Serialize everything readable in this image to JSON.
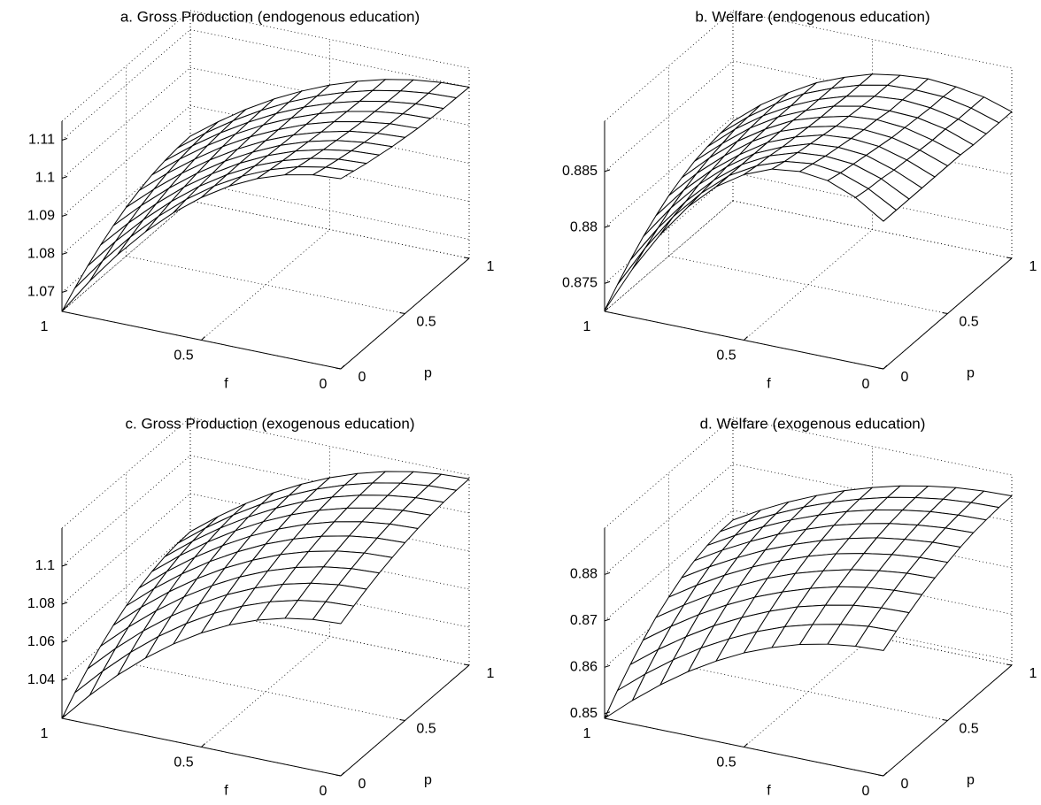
{
  "chart_data": [
    {
      "type": "surface",
      "title": "a. Gross Production (endogenous education)",
      "x_label": "f",
      "y_label": "p",
      "edge_color": "#000000",
      "face_color": "#ffffff",
      "grid": true,
      "xlim": [
        0,
        1
      ],
      "xticks": [
        0,
        0.5,
        1
      ],
      "ylim": [
        0,
        1
      ],
      "yticks": [
        0,
        0.5,
        1
      ],
      "zlim": [
        1.065,
        1.115
      ],
      "zticks": [
        1.07,
        1.08,
        1.09,
        1.1,
        1.11
      ],
      "x": [
        0,
        0.1,
        0.2,
        0.3,
        0.4,
        0.5,
        0.6,
        0.7,
        0.8,
        0.9,
        1
      ],
      "y": [
        0,
        0.1,
        0.2,
        0.3,
        0.4,
        0.5,
        0.6,
        0.7,
        0.8,
        0.9,
        1
      ],
      "z": [
        [
          1.115,
          1.1141,
          1.1132,
          1.1125,
          1.1118,
          1.1113,
          1.1108,
          1.1105,
          1.1102,
          1.1101,
          1.11
        ],
        [
          1.1145,
          1.1136,
          1.1128,
          1.1121,
          1.1114,
          1.1109,
          1.1105,
          1.1102,
          1.1099,
          1.1098,
          1.1097
        ],
        [
          1.113,
          1.1122,
          1.1115,
          1.1109,
          1.1104,
          1.1099,
          1.1095,
          1.1093,
          1.109,
          1.1089,
          1.1089
        ],
        [
          1.1105,
          1.1099,
          1.1094,
          1.109,
          1.1086,
          1.1082,
          1.108,
          1.1078,
          1.1076,
          1.1075,
          1.1075
        ],
        [
          1.107,
          1.1067,
          1.1065,
          1.1063,
          1.1061,
          1.1059,
          1.1058,
          1.1057,
          1.1056,
          1.1055,
          1.1055
        ],
        [
          1.1025,
          1.1026,
          1.1027,
          1.1028,
          1.1028,
          1.1029,
          1.1029,
          1.103,
          1.103,
          1.103,
          1.103
        ],
        [
          1.097,
          1.0976,
          1.0981,
          1.0985,
          1.0989,
          1.0992,
          1.0995,
          1.0997,
          1.0998,
          1.0999,
          1.0999
        ],
        [
          1.0905,
          1.0916,
          1.0926,
          1.0935,
          1.0942,
          1.0948,
          1.0954,
          1.0958,
          1.096,
          1.0962,
          1.0963
        ],
        [
          1.083,
          1.0847,
          1.0863,
          1.0876,
          1.0888,
          1.0898,
          1.0906,
          1.0913,
          1.0917,
          1.092,
          1.0921
        ],
        [
          1.0745,
          1.0769,
          1.0791,
          1.081,
          1.0827,
          1.0841,
          1.0853,
          1.0862,
          1.0868,
          1.0872,
          1.0873
        ],
        [
          1.065,
          1.0682,
          1.0711,
          1.0737,
          1.0759,
          1.0778,
          1.0793,
          1.0805,
          1.0813,
          1.0818,
          1.082
        ]
      ]
    },
    {
      "type": "surface",
      "title": "b. Welfare (endogenous education)",
      "x_label": "f",
      "y_label": "p",
      "edge_color": "#000000",
      "face_color": "#ffffff",
      "grid": true,
      "xlim": [
        0,
        1
      ],
      "xticks": [
        0,
        0.5,
        1
      ],
      "ylim": [
        0,
        1
      ],
      "yticks": [
        0,
        0.5,
        1
      ],
      "zlim": [
        0.8725,
        0.8895
      ],
      "zticks": [
        0.875,
        0.88,
        0.885
      ],
      "x": [
        0,
        0.1,
        0.2,
        0.3,
        0.4,
        0.5,
        0.6,
        0.7,
        0.8,
        0.9,
        1
      ],
      "y": [
        0,
        0.1,
        0.2,
        0.3,
        0.4,
        0.5,
        0.6,
        0.7,
        0.8,
        0.9,
        1
      ],
      "z": [
        [
          0.8857,
          0.8857,
          0.8857,
          0.8857,
          0.8857,
          0.8857,
          0.8857,
          0.8856,
          0.8856,
          0.8856,
          0.8856
        ],
        [
          0.8873,
          0.8871,
          0.887,
          0.8868,
          0.8867,
          0.8866,
          0.8865,
          0.8865,
          0.8864,
          0.8864,
          0.8864
        ],
        [
          0.8883,
          0.888,
          0.8878,
          0.8876,
          0.8874,
          0.8872,
          0.8871,
          0.887,
          0.8869,
          0.8869,
          0.8868
        ],
        [
          0.8886,
          0.8883,
          0.888,
          0.8878,
          0.8876,
          0.8874,
          0.8873,
          0.8871,
          0.8871,
          0.887,
          0.887
        ],
        [
          0.8883,
          0.888,
          0.8878,
          0.8876,
          0.8874,
          0.8872,
          0.8871,
          0.887,
          0.8869,
          0.8869,
          0.8868
        ],
        [
          0.8873,
          0.8871,
          0.887,
          0.8868,
          0.8867,
          0.8866,
          0.8865,
          0.8865,
          0.8864,
          0.8864,
          0.8864
        ],
        [
          0.8857,
          0.8857,
          0.8857,
          0.8857,
          0.8857,
          0.8857,
          0.8857,
          0.8856,
          0.8856,
          0.8856,
          0.8856
        ],
        [
          0.8834,
          0.8836,
          0.8838,
          0.884,
          0.8841,
          0.8843,
          0.8844,
          0.8845,
          0.8845,
          0.8846,
          0.8846
        ],
        [
          0.8804,
          0.881,
          0.8814,
          0.8819,
          0.8822,
          0.8825,
          0.8828,
          0.883,
          0.8831,
          0.8832,
          0.8832
        ],
        [
          0.8768,
          0.8777,
          0.8785,
          0.8793,
          0.8799,
          0.8804,
          0.8808,
          0.8811,
          0.8814,
          0.8815,
          0.8816
        ],
        [
          0.8726,
          0.8739,
          0.8751,
          0.8762,
          0.8771,
          0.8779,
          0.8785,
          0.879,
          0.8793,
          0.8795,
          0.8796
        ]
      ]
    },
    {
      "type": "surface",
      "title": "c. Gross Production (exogenous education)",
      "x_label": "f",
      "y_label": "p",
      "edge_color": "#000000",
      "face_color": "#ffffff",
      "grid": true,
      "xlim": [
        0,
        1
      ],
      "xticks": [
        0,
        0.5,
        1
      ],
      "ylim": [
        0,
        1
      ],
      "yticks": [
        0,
        0.5,
        1
      ],
      "zlim": [
        1.02,
        1.12
      ],
      "zticks": [
        1.04,
        1.06,
        1.08,
        1.1
      ],
      "x": [
        0,
        0.1,
        0.2,
        0.3,
        0.4,
        0.5,
        0.6,
        0.7,
        0.8,
        0.9,
        1
      ],
      "y": [
        0,
        0.1,
        0.2,
        0.3,
        0.4,
        0.5,
        0.6,
        0.7,
        0.8,
        0.9,
        1
      ],
      "z": [
        [
          1.1,
          1.1034,
          1.1065,
          1.1092,
          1.1115,
          1.1135,
          1.1151,
          1.1164,
          1.1173,
          1.1178,
          1.118
        ],
        [
          1.0992,
          1.1027,
          1.1058,
          1.1085,
          1.1109,
          1.1129,
          1.1145,
          1.1158,
          1.1167,
          1.1172,
          1.1174
        ],
        [
          1.0968,
          1.1004,
          1.1036,
          1.1064,
          1.1089,
          1.111,
          1.1127,
          1.114,
          1.1149,
          1.1155,
          1.1157
        ],
        [
          1.0928,
          1.0966,
          1.1,
          1.103,
          1.1056,
          1.1078,
          1.1096,
          1.111,
          1.112,
          1.1126,
          1.1128
        ],
        [
          1.0872,
          1.0913,
          1.095,
          1.0982,
          1.101,
          1.1033,
          1.1053,
          1.1068,
          1.1079,
          1.1085,
          1.1087
        ],
        [
          1.08,
          1.0845,
          1.0885,
          1.092,
          1.095,
          1.0976,
          1.0997,
          1.1014,
          1.1026,
          1.1033,
          1.1035
        ],
        [
          1.0712,
          1.0761,
          1.0805,
          1.0844,
          1.0878,
          1.0906,
          1.093,
          1.0948,
          1.0961,
          1.0969,
          1.0971
        ],
        [
          1.0608,
          1.0663,
          1.0712,
          1.0755,
          1.0792,
          1.0824,
          1.085,
          1.087,
          1.0884,
          1.0893,
          1.0896
        ],
        [
          1.0488,
          1.0549,
          1.0604,
          1.0652,
          1.0693,
          1.0729,
          1.0758,
          1.078,
          1.0796,
          1.0806,
          1.0809
        ],
        [
          1.0352,
          1.042,
          1.0481,
          1.0535,
          1.0581,
          1.0621,
          1.0653,
          1.0678,
          1.0696,
          1.0707,
          1.071
        ],
        [
          1.02,
          1.0276,
          1.0344,
          1.0404,
          1.0456,
          1.05,
          1.0536,
          1.0564,
          1.0584,
          1.0596,
          1.06
        ]
      ]
    },
    {
      "type": "surface",
      "title": "d. Welfare (exogenous education)",
      "x_label": "f",
      "y_label": "p",
      "edge_color": "#000000",
      "face_color": "#ffffff",
      "grid": true,
      "xlim": [
        0,
        1
      ],
      "xticks": [
        0,
        0.5,
        1
      ],
      "ylim": [
        0,
        1
      ],
      "yticks": [
        0,
        0.5,
        1
      ],
      "zlim": [
        0.849,
        0.89
      ],
      "zticks": [
        0.85,
        0.86,
        0.87,
        0.88
      ],
      "x": [
        0,
        0.1,
        0.2,
        0.3,
        0.4,
        0.5,
        0.6,
        0.7,
        0.8,
        0.9,
        1
      ],
      "y": [
        0,
        0.1,
        0.2,
        0.3,
        0.4,
        0.5,
        0.6,
        0.7,
        0.8,
        0.9,
        1
      ],
      "z": [
        [
          0.876,
          0.8778,
          0.8794,
          0.8809,
          0.8821,
          0.8831,
          0.884,
          0.8847,
          0.8851,
          0.8854,
          0.8855
        ],
        [
          0.8757,
          0.8776,
          0.8792,
          0.8806,
          0.8819,
          0.8829,
          0.8838,
          0.8845,
          0.8849,
          0.8852,
          0.8853
        ],
        [
          0.8749,
          0.8768,
          0.8785,
          0.88,
          0.8812,
          0.8823,
          0.8832,
          0.8839,
          0.8844,
          0.8847,
          0.8848
        ],
        [
          0.8736,
          0.8755,
          0.8773,
          0.8789,
          0.8802,
          0.8813,
          0.8823,
          0.883,
          0.8835,
          0.8838,
          0.8839
        ],
        [
          0.8717,
          0.8738,
          0.8757,
          0.8773,
          0.8787,
          0.88,
          0.8809,
          0.8817,
          0.8823,
          0.8826,
          0.8827
        ],
        [
          0.8693,
          0.8715,
          0.8735,
          0.8753,
          0.8769,
          0.8782,
          0.8792,
          0.8801,
          0.8807,
          0.881,
          0.8811
        ],
        [
          0.8663,
          0.8687,
          0.8709,
          0.8729,
          0.8746,
          0.876,
          0.8771,
          0.878,
          0.8787,
          0.8791,
          0.8792
        ],
        [
          0.8628,
          0.8655,
          0.8679,
          0.87,
          0.8718,
          0.8734,
          0.8747,
          0.8757,
          0.8764,
          0.8768,
          0.8769
        ],
        [
          0.8587,
          0.8617,
          0.8643,
          0.8667,
          0.8687,
          0.8704,
          0.8718,
          0.8729,
          0.8737,
          0.8741,
          0.8743
        ],
        [
          0.8541,
          0.8574,
          0.8603,
          0.8629,
          0.8651,
          0.867,
          0.8686,
          0.8698,
          0.8706,
          0.8712,
          0.8713
        ],
        [
          0.849,
          0.8526,
          0.8558,
          0.8587,
          0.8612,
          0.8632,
          0.865,
          0.8663,
          0.8672,
          0.8678,
          0.8679
        ]
      ]
    }
  ]
}
